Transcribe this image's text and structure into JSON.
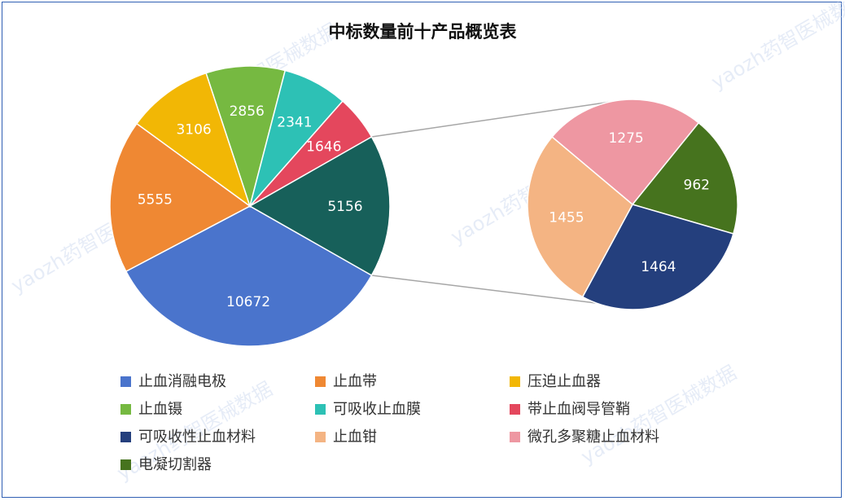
{
  "chart_data": {
    "type": "pie",
    "subtype": "pie-of-pie",
    "title": "中标数量前十产品概览表",
    "slices": [
      {
        "name": "止血消融电极",
        "value": 10672,
        "color": "#4a74cc"
      },
      {
        "name": "止血带",
        "value": 5555,
        "color": "#ef8833"
      },
      {
        "name": "压迫止血器",
        "value": 3106,
        "color": "#f2b705"
      },
      {
        "name": "止血镊",
        "value": 2856,
        "color": "#76b941"
      },
      {
        "name": "可吸收止血膜",
        "value": 2341,
        "color": "#2dc1b5"
      },
      {
        "name": "带止血阀导管鞘",
        "value": 1646,
        "color": "#e4475d"
      }
    ],
    "aggregate": {
      "value": 5156,
      "color": "#17605a"
    },
    "secondary": [
      {
        "name": "可吸收性止血材料",
        "value": 1464,
        "color": "#243f7d"
      },
      {
        "name": "止血钳",
        "value": 1455,
        "color": "#f4b483"
      },
      {
        "name": "微孔多聚糖止血材料",
        "value": 1275,
        "color": "#ee97a2"
      },
      {
        "name": "电凝切割器",
        "value": 962,
        "color": "#46731e"
      }
    ],
    "legend": [
      {
        "name": "止血消融电极",
        "color": "#4a74cc"
      },
      {
        "name": "止血带",
        "color": "#ef8833"
      },
      {
        "name": "压迫止血器",
        "color": "#f2b705"
      },
      {
        "name": "止血镊",
        "color": "#76b941"
      },
      {
        "name": "可吸收止血膜",
        "color": "#2dc1b5"
      },
      {
        "name": "带止血阀导管鞘",
        "color": "#e4475d"
      },
      {
        "name": "可吸收性止血材料",
        "color": "#243f7d"
      },
      {
        "name": "止血钳",
        "color": "#f4b483"
      },
      {
        "name": "微孔多聚糖止血材料",
        "color": "#ee97a2"
      },
      {
        "name": "电凝切割器",
        "color": "#46731e"
      }
    ],
    "legend_position": "bottom"
  },
  "watermark": "yaozh药智医械数据"
}
